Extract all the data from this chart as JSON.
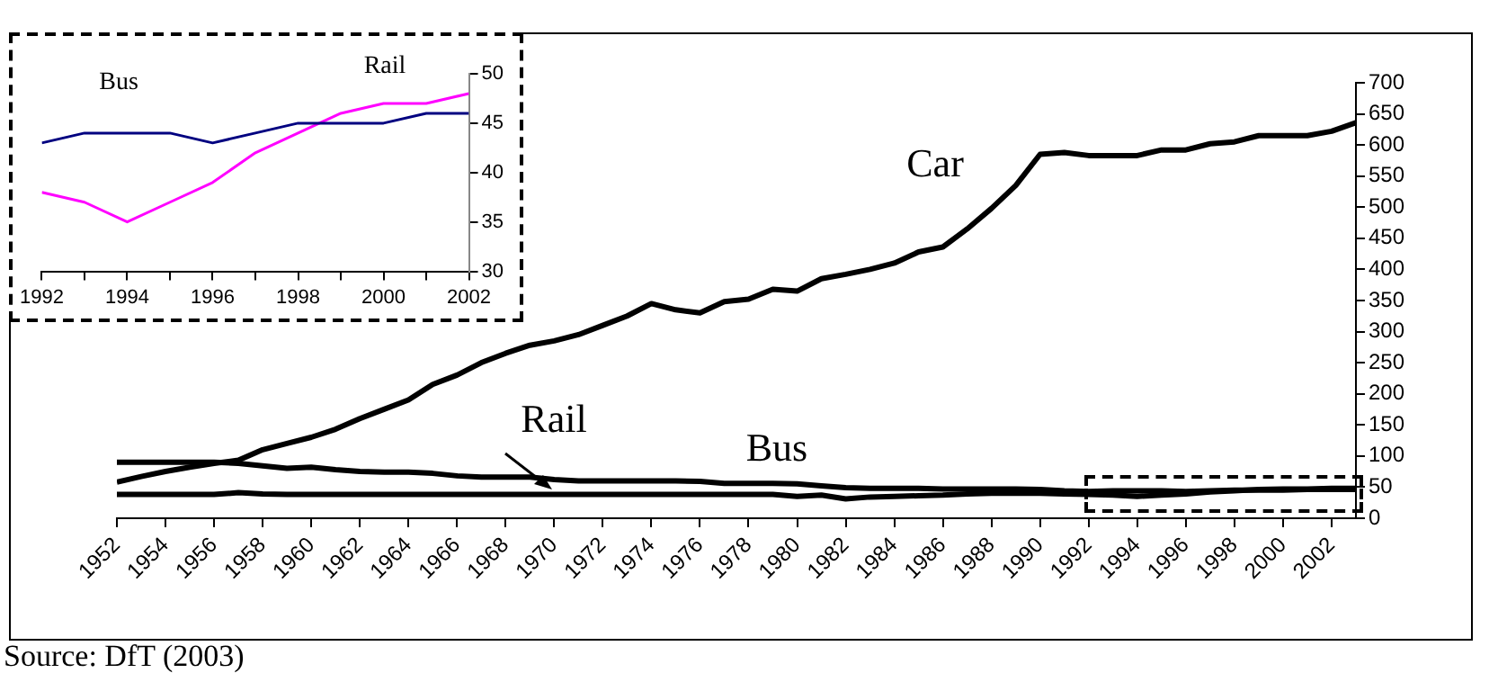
{
  "chart_data": [
    {
      "type": "line",
      "x": [
        1952,
        1953,
        1954,
        1955,
        1956,
        1957,
        1958,
        1959,
        1960,
        1961,
        1962,
        1963,
        1964,
        1965,
        1966,
        1967,
        1968,
        1969,
        1970,
        1971,
        1972,
        1973,
        1974,
        1975,
        1976,
        1977,
        1978,
        1979,
        1980,
        1981,
        1982,
        1983,
        1984,
        1985,
        1986,
        1987,
        1988,
        1989,
        1990,
        1991,
        1992,
        1993,
        1994,
        1995,
        1996,
        1997,
        1998,
        1999,
        2000,
        2001,
        2002,
        2003
      ],
      "series": [
        {
          "name": "Car",
          "color": "#000000",
          "values": [
            58,
            67,
            75,
            82,
            88,
            93,
            110,
            120,
            130,
            143,
            160,
            175,
            190,
            215,
            230,
            250,
            265,
            278,
            285,
            295,
            310,
            325,
            345,
            335,
            330,
            348,
            352,
            368,
            365,
            385,
            392,
            400,
            410,
            428,
            436,
            465,
            498,
            535,
            585,
            588,
            583,
            583,
            583,
            592,
            592,
            602,
            605,
            615,
            615,
            615,
            622,
            636
          ]
        },
        {
          "name": "Rail",
          "color": "#000000",
          "values": [
            38,
            38,
            38,
            38,
            38,
            41,
            39,
            38,
            38,
            38,
            38,
            38,
            38,
            38,
            38,
            38,
            38,
            38,
            38,
            38,
            38,
            38,
            38,
            38,
            38,
            38,
            38,
            38,
            35,
            37,
            31,
            34,
            35,
            36,
            37,
            39,
            40,
            40,
            40,
            39,
            38,
            37,
            35,
            37,
            39,
            42,
            44,
            46,
            47,
            47,
            48,
            48
          ]
        },
        {
          "name": "Bus",
          "color": "#000000",
          "values": [
            90,
            90,
            90,
            90,
            90,
            88,
            84,
            80,
            82,
            78,
            75,
            74,
            74,
            72,
            68,
            66,
            66,
            66,
            62,
            60,
            60,
            60,
            60,
            60,
            59,
            56,
            56,
            56,
            55,
            52,
            49,
            48,
            48,
            48,
            47,
            47,
            47,
            47,
            46,
            44,
            43,
            44,
            44,
            44,
            43,
            44,
            45,
            45,
            45,
            46,
            46,
            46
          ]
        }
      ],
      "xlim": [
        1952,
        2003
      ],
      "xticks": [
        1952,
        1954,
        1956,
        1958,
        1960,
        1962,
        1964,
        1966,
        1968,
        1970,
        1972,
        1974,
        1976,
        1978,
        1980,
        1982,
        1984,
        1986,
        1988,
        1990,
        1992,
        1994,
        1996,
        1998,
        2000,
        2002
      ],
      "ylim": [
        0,
        700
      ],
      "yticks": [
        0,
        50,
        100,
        150,
        200,
        250,
        300,
        350,
        400,
        450,
        500,
        550,
        600,
        650,
        700
      ],
      "grid": false,
      "legend": false,
      "annotations": [
        "Source: DfT (2003)"
      ]
    },
    {
      "type": "line",
      "x": [
        1992,
        1993,
        1994,
        1995,
        1996,
        1997,
        1998,
        1999,
        2000,
        2001,
        2002
      ],
      "series": [
        {
          "name": "Bus",
          "color": "#000080",
          "values": [
            43,
            44,
            44,
            44,
            43,
            44,
            45,
            45,
            45,
            46,
            46
          ]
        },
        {
          "name": "Rail",
          "color": "#ff00ff",
          "values": [
            38,
            37,
            35,
            37,
            39,
            42,
            44,
            46,
            47,
            47,
            48
          ]
        }
      ],
      "xlim": [
        1992,
        2002
      ],
      "xticks": [
        1992,
        {
          "value": 1993,
          "label": null
        },
        1994,
        {
          "value": 1995,
          "label": null
        },
        1996,
        {
          "value": 1997,
          "label": null
        },
        1998,
        {
          "value": 1999,
          "label": null
        },
        2000,
        {
          "value": 2001,
          "label": null
        },
        2002
      ],
      "ylim": [
        30,
        50
      ],
      "yticks": [
        30,
        35,
        40,
        45,
        50
      ],
      "grid": false,
      "legend": false
    }
  ]
}
